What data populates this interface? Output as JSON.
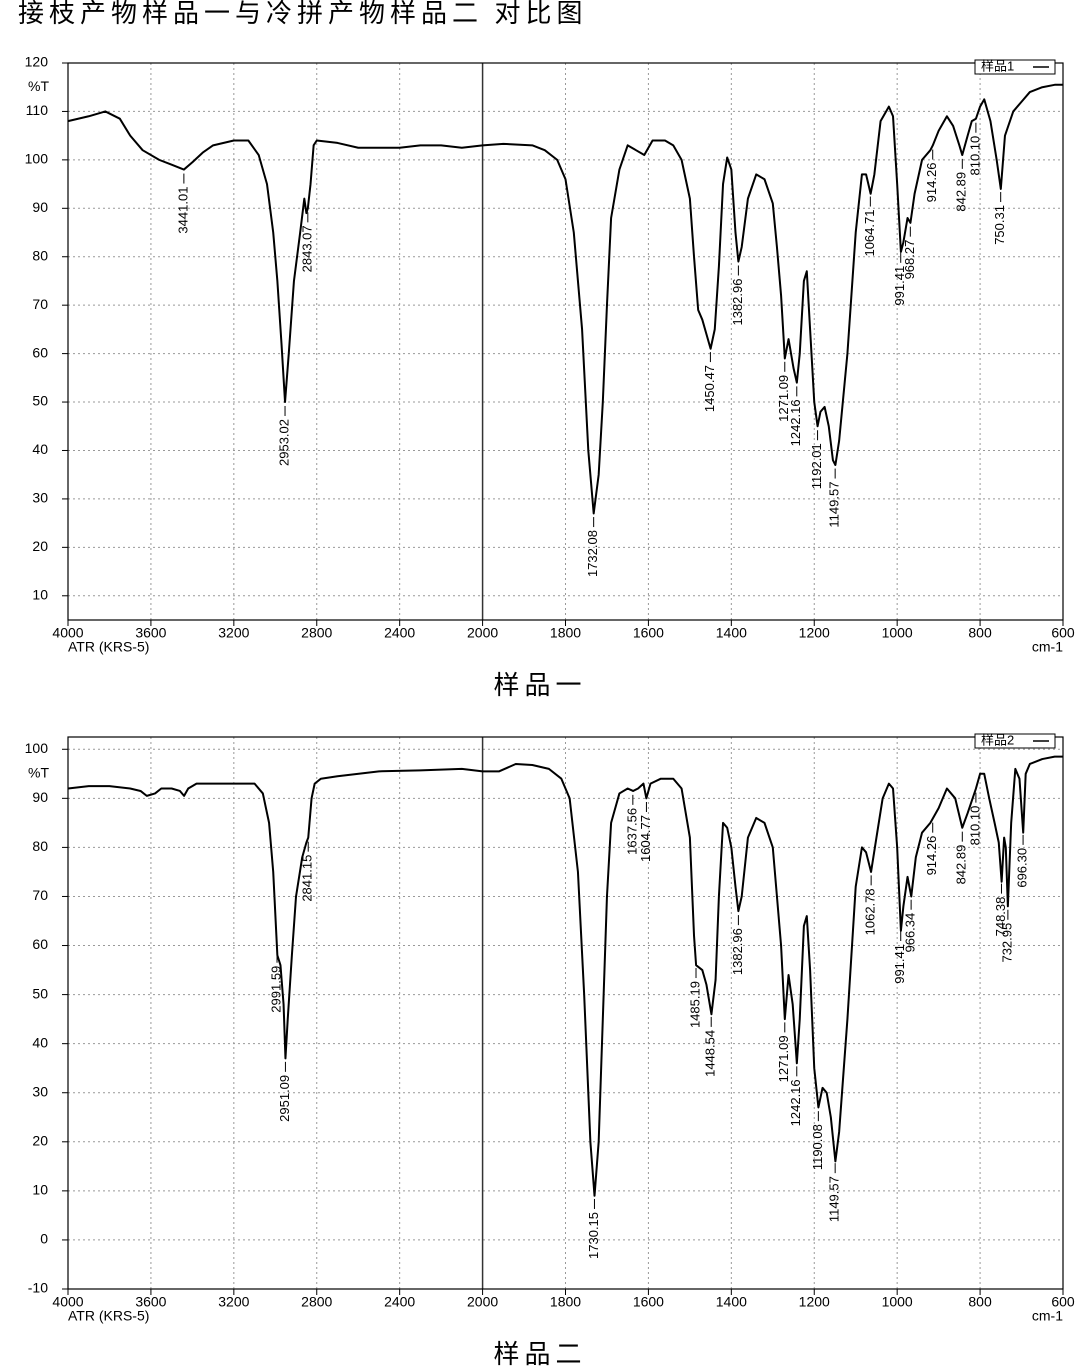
{
  "title": "接枝产物样品一与冷拼产物样品二 对比图",
  "chart_data": [
    {
      "type": "line",
      "caption": "样品一",
      "ylabel": "%T",
      "xlabel": "ATR (KRS-5)",
      "xunit": "cm-1",
      "xlim": [
        4000,
        600
      ],
      "xbreak": 2000,
      "ylim": [
        5,
        120
      ],
      "xticks": [
        4000,
        3600,
        3200,
        2800,
        2400,
        2000,
        1800,
        1600,
        1400,
        1200,
        1000,
        800,
        600
      ],
      "yticks": [
        10,
        20,
        30,
        40,
        50,
        60,
        70,
        80,
        90,
        100,
        110,
        120
      ],
      "grid": true,
      "legend": "upper right",
      "x": [
        4000,
        3900,
        3820,
        3750,
        3700,
        3640,
        3560,
        3500,
        3441,
        3400,
        3350,
        3300,
        3200,
        3130,
        3080,
        3040,
        3010,
        2990,
        2970,
        2953,
        2935,
        2910,
        2880,
        2860,
        2850,
        2843,
        2830,
        2815,
        2800,
        2700,
        2600,
        2400,
        2300,
        2200,
        2100,
        2000,
        1950,
        1880,
        1850,
        1820,
        1800,
        1780,
        1760,
        1745,
        1732,
        1720,
        1710,
        1700,
        1690,
        1670,
        1650,
        1630,
        1610,
        1590,
        1560,
        1540,
        1520,
        1500,
        1490,
        1480,
        1470,
        1460,
        1450,
        1440,
        1430,
        1420,
        1410,
        1400,
        1390,
        1383,
        1375,
        1360,
        1340,
        1320,
        1300,
        1290,
        1280,
        1271,
        1262,
        1250,
        1242,
        1235,
        1225,
        1218,
        1210,
        1200,
        1192,
        1185,
        1175,
        1165,
        1155,
        1149,
        1140,
        1120,
        1100,
        1085,
        1075,
        1064,
        1055,
        1040,
        1020,
        1010,
        1000,
        991,
        985,
        975,
        968,
        958,
        940,
        920,
        914,
        900,
        880,
        865,
        850,
        843,
        830,
        820,
        810,
        800,
        790,
        775,
        760,
        750,
        740,
        720,
        700,
        680,
        650,
        620,
        600
      ],
      "series": [
        {
          "name": "样品1",
          "color": "#000000",
          "values": [
            108,
            109,
            110,
            108.5,
            105,
            102,
            100,
            99,
            98,
            99.5,
            101.5,
            103,
            104,
            104,
            101,
            95,
            85,
            75,
            62,
            50,
            60,
            75,
            85,
            92,
            89,
            90,
            95,
            103,
            104,
            103.5,
            102.5,
            102.5,
            103,
            103,
            102.5,
            103,
            103.3,
            103,
            102,
            100,
            96,
            85,
            65,
            40,
            27,
            35,
            50,
            70,
            88,
            98,
            103,
            102,
            101,
            104,
            104,
            103,
            100,
            92,
            80,
            69,
            67,
            64,
            61,
            65,
            78,
            95,
            100.5,
            98,
            85,
            79,
            82,
            92,
            97,
            96,
            91,
            82,
            72,
            59,
            63,
            57,
            54,
            60,
            75,
            77,
            65,
            50,
            45,
            48,
            49,
            45,
            38,
            37,
            42,
            60,
            85,
            97,
            97,
            93,
            97,
            108,
            111,
            109,
            95,
            81,
            83,
            88,
            87,
            93,
            100,
            102,
            103,
            106,
            109,
            107,
            103,
            101,
            105,
            108,
            108.5,
            111,
            112.5,
            108,
            100,
            94,
            105,
            110,
            112,
            114,
            115,
            115.5,
            115.5
          ]
        }
      ],
      "peaks": [
        {
          "value": 3441.01,
          "label": "3441.01"
        },
        {
          "value": 2953.02,
          "label": "2953.02"
        },
        {
          "value": 2843.07,
          "label": "2843.07"
        },
        {
          "value": 1732.08,
          "label": "1732.08"
        },
        {
          "value": 1450.47,
          "label": "1450.47"
        },
        {
          "value": 1382.96,
          "label": "1382.96"
        },
        {
          "value": 1271.09,
          "label": "1271.09"
        },
        {
          "value": 1242.16,
          "label": "1242.16"
        },
        {
          "value": 1192.01,
          "label": "1192.01"
        },
        {
          "value": 1149.57,
          "label": "1149.57"
        },
        {
          "value": 1064.71,
          "label": "1064.71"
        },
        {
          "value": 991.41,
          "label": "991.41"
        },
        {
          "value": 968.27,
          "label": "968.27"
        },
        {
          "value": 914.26,
          "label": "914.26"
        },
        {
          "value": 842.89,
          "label": "842.89"
        },
        {
          "value": 810.1,
          "label": "810.10"
        },
        {
          "value": 750.31,
          "label": "750.31"
        }
      ]
    },
    {
      "type": "line",
      "caption": "样品二",
      "ylabel": "%T",
      "xlabel": "ATR (KRS-5)",
      "xunit": "cm-1",
      "xlim": [
        4000,
        600
      ],
      "xbreak": 2000,
      "ylim": [
        -10,
        102.5
      ],
      "xticks": [
        4000,
        3600,
        3200,
        2800,
        2400,
        2000,
        1800,
        1600,
        1400,
        1200,
        1000,
        800,
        600
      ],
      "yticks": [
        -10,
        0,
        10,
        20,
        30,
        40,
        50,
        60,
        70,
        80,
        90,
        100
      ],
      "grid": true,
      "legend": "upper right",
      "x": [
        4000,
        3900,
        3800,
        3700,
        3650,
        3620,
        3580,
        3550,
        3500,
        3460,
        3440,
        3420,
        3380,
        3300,
        3100,
        3060,
        3030,
        3010,
        2990,
        2975,
        2960,
        2951,
        2940,
        2920,
        2900,
        2870,
        2850,
        2841,
        2825,
        2810,
        2780,
        2700,
        2500,
        2300,
        2100,
        2000,
        1960,
        1920,
        1880,
        1840,
        1810,
        1790,
        1770,
        1755,
        1740,
        1730,
        1720,
        1710,
        1700,
        1690,
        1670,
        1650,
        1637,
        1625,
        1612,
        1605,
        1595,
        1570,
        1540,
        1520,
        1500,
        1490,
        1485,
        1470,
        1460,
        1448,
        1438,
        1430,
        1420,
        1410,
        1400,
        1390,
        1383,
        1375,
        1360,
        1340,
        1320,
        1300,
        1290,
        1280,
        1271,
        1262,
        1252,
        1242,
        1235,
        1225,
        1218,
        1210,
        1200,
        1190,
        1180,
        1170,
        1160,
        1149,
        1140,
        1120,
        1100,
        1085,
        1075,
        1063,
        1050,
        1035,
        1020,
        1010,
        1000,
        991,
        985,
        975,
        966,
        955,
        940,
        920,
        900,
        880,
        860,
        843,
        830,
        810,
        800,
        790,
        778,
        765,
        755,
        748,
        742,
        738,
        733,
        725,
        715,
        705,
        696,
        690,
        680,
        650,
        620,
        600
      ],
      "series": [
        {
          "name": "样品2",
          "color": "#000000",
          "values": [
            92,
            92.5,
            92.5,
            92,
            91.5,
            90.5,
            91,
            92,
            92,
            91.5,
            90.5,
            92,
            93,
            93,
            93,
            91,
            85,
            75,
            58,
            56,
            48,
            37,
            45,
            58,
            70,
            78,
            81,
            82,
            90,
            93,
            94,
            94.5,
            95.5,
            95.7,
            96,
            95.5,
            95.5,
            97,
            96.8,
            96,
            94,
            90,
            75,
            50,
            20,
            9,
            20,
            45,
            70,
            85,
            91,
            92,
            91.5,
            92,
            93,
            90,
            93,
            94,
            94,
            92,
            82,
            62,
            56,
            55,
            52,
            46,
            53,
            70,
            85,
            84,
            80,
            72,
            67,
            70,
            82,
            86,
            85,
            80,
            70,
            60,
            45,
            54,
            48,
            36,
            45,
            64,
            66,
            55,
            35,
            27,
            31,
            30,
            25,
            16,
            22,
            45,
            72,
            80,
            79,
            75,
            82,
            90,
            93,
            92,
            80,
            63,
            68,
            74,
            70,
            78,
            83,
            85,
            88,
            92,
            90,
            84,
            87,
            92,
            95,
            95,
            90,
            85,
            81,
            73,
            82,
            80,
            68,
            85,
            96,
            94,
            83,
            95,
            97,
            98,
            98.5,
            98.5
          ]
        }
      ],
      "peaks": [
        {
          "value": 2991.59,
          "label": "2991.59"
        },
        {
          "value": 2951.09,
          "label": "2951.09"
        },
        {
          "value": 2841.15,
          "label": "2841.15"
        },
        {
          "value": 1730.15,
          "label": "1730.15"
        },
        {
          "value": 1637.56,
          "label": "1637.56"
        },
        {
          "value": 1604.77,
          "label": "1604.77"
        },
        {
          "value": 1485.19,
          "label": "1485.19"
        },
        {
          "value": 1448.54,
          "label": "1448.54"
        },
        {
          "value": 1382.96,
          "label": "1382.96"
        },
        {
          "value": 1271.09,
          "label": "1271.09"
        },
        {
          "value": 1242.16,
          "label": "1242.16"
        },
        {
          "value": 1190.08,
          "label": "1190.08"
        },
        {
          "value": 1149.57,
          "label": "1149.57"
        },
        {
          "value": 1062.78,
          "label": "1062.78"
        },
        {
          "value": 991.41,
          "label": "991.41"
        },
        {
          "value": 966.34,
          "label": "966.34"
        },
        {
          "value": 914.26,
          "label": "914.26"
        },
        {
          "value": 842.89,
          "label": "842.89"
        },
        {
          "value": 810.1,
          "label": "810.10"
        },
        {
          "value": 748.38,
          "label": "748.38"
        },
        {
          "value": 732.95,
          "label": "732.95"
        },
        {
          "value": 696.3,
          "label": "696.30"
        }
      ]
    }
  ]
}
